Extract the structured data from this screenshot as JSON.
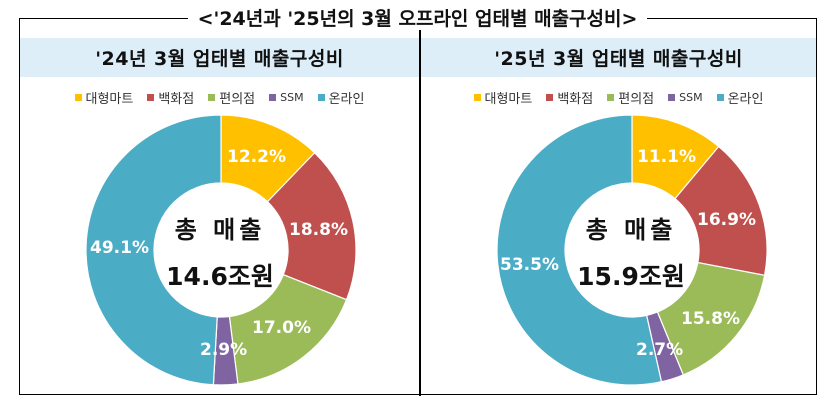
{
  "title": "<'24년과 '25년의 3월 오프라인 업태별 매출구성비>",
  "legend_items": [
    {
      "label": "대형마트",
      "color": "#ffc000"
    },
    {
      "label": "백화점",
      "color": "#c0504d"
    },
    {
      "label": "편의점",
      "color": "#9bbb59"
    },
    {
      "label": "SSM",
      "color": "#8064a2"
    },
    {
      "label": "온라인",
      "color": "#4bacc6"
    }
  ],
  "panels": [
    {
      "header": "'24년 3월 업태별 매출구성비",
      "center_line1": "총 매출",
      "center_line2": "14.6조원",
      "labels": [
        "12.2%",
        "18.8%",
        "17.0%",
        "2.9%",
        "49.1%"
      ]
    },
    {
      "header": "'25년 3월 업태별 매출구성비",
      "center_line1": "총 매출",
      "center_line2": "15.9조원",
      "labels": [
        "11.1%",
        "16.9%",
        "15.8%",
        "2.7%",
        "53.5%"
      ]
    }
  ],
  "chart_data": [
    {
      "type": "pie",
      "subtype": "donut",
      "title": "'24년 3월 업태별 매출구성비",
      "categories": [
        "대형마트",
        "백화점",
        "편의점",
        "SSM",
        "온라인"
      ],
      "values": [
        12.2,
        18.8,
        17.0,
        2.9,
        49.1
      ],
      "unit": "%",
      "colors": [
        "#ffc000",
        "#c0504d",
        "#9bbb59",
        "#8064a2",
        "#4bacc6"
      ],
      "center_annotation": "총 매출 14.6조원",
      "legend_position": "top"
    },
    {
      "type": "pie",
      "subtype": "donut",
      "title": "'25년 3월 업태별 매출구성비",
      "categories": [
        "대형마트",
        "백화점",
        "편의점",
        "SSM",
        "온라인"
      ],
      "values": [
        11.1,
        16.9,
        15.8,
        2.7,
        53.5
      ],
      "unit": "%",
      "colors": [
        "#ffc000",
        "#c0504d",
        "#9bbb59",
        "#8064a2",
        "#4bacc6"
      ],
      "center_annotation": "총 매출 15.9조원",
      "legend_position": "top"
    }
  ]
}
